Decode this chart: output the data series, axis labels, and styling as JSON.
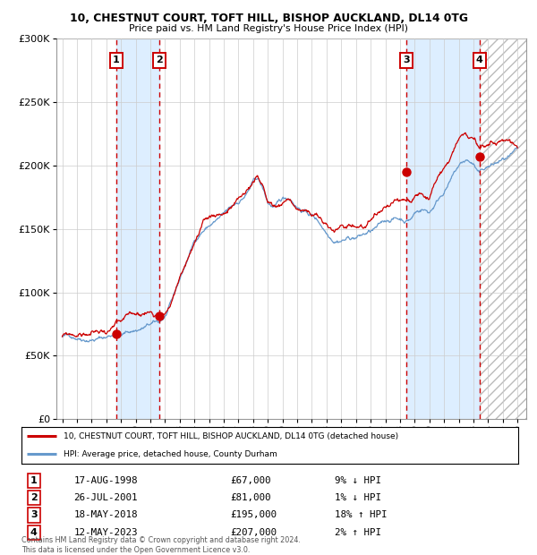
{
  "title1": "10, CHESTNUT COURT, TOFT HILL, BISHOP AUCKLAND, DL14 0TG",
  "title2": "Price paid vs. HM Land Registry's House Price Index (HPI)",
  "legend_line1": "10, CHESTNUT COURT, TOFT HILL, BISHOP AUCKLAND, DL14 0TG (detached house)",
  "legend_line2": "HPI: Average price, detached house, County Durham",
  "footer": "Contains HM Land Registry data © Crown copyright and database right 2024.\nThis data is licensed under the Open Government Licence v3.0.",
  "sales": [
    {
      "num": 1,
      "date": "1998-08-17",
      "price": 67000,
      "hpi_rel": "9% ↓ HPI"
    },
    {
      "num": 2,
      "date": "2001-07-26",
      "price": 81000,
      "hpi_rel": "1% ↓ HPI"
    },
    {
      "num": 3,
      "date": "2018-05-18",
      "price": 195000,
      "hpi_rel": "18% ↑ HPI"
    },
    {
      "num": 4,
      "date": "2023-05-12",
      "price": 207000,
      "hpi_rel": "2% ↑ HPI"
    }
  ],
  "sale_dates_display": [
    "17-AUG-1998",
    "26-JUL-2001",
    "18-MAY-2018",
    "12-MAY-2023"
  ],
  "sale_prices_display": [
    "£67,000",
    "£81,000",
    "£195,000",
    "£207,000"
  ],
  "ylim": [
    0,
    300000
  ],
  "yticks": [
    0,
    50000,
    100000,
    150000,
    200000,
    250000,
    300000
  ],
  "ytick_labels": [
    "£0",
    "£50K",
    "£100K",
    "£150K",
    "£200K",
    "£250K",
    "£300K"
  ],
  "xstart": 1994.6,
  "xend": 2026.6,
  "red_color": "#cc0000",
  "blue_color": "#6699cc",
  "bg_color": "#ddeeff",
  "grid_color": "#cccccc"
}
